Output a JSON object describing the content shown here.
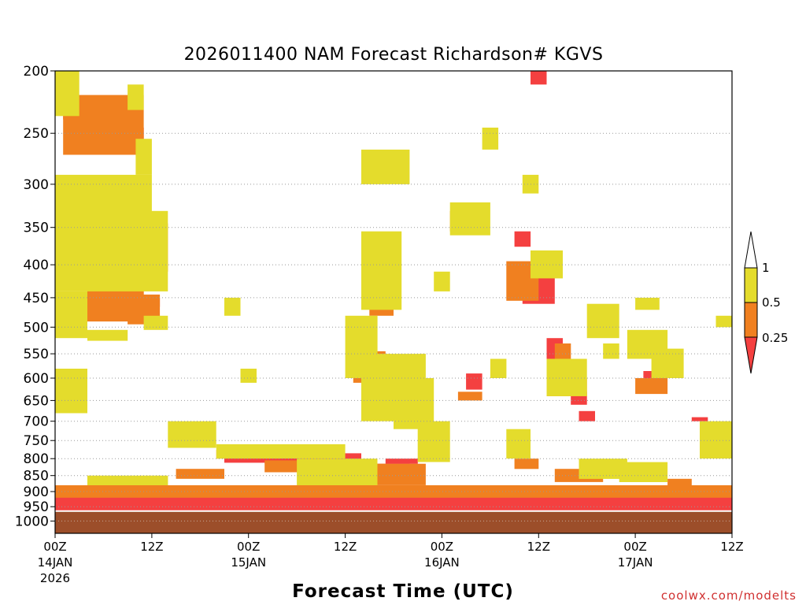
{
  "chart_data": {
    "type": "heatmap",
    "title": "2026011400 NAM Forecast Richardson# KGVS",
    "xlabel": "Forecast Time (UTC)",
    "ylabel": "",
    "credit": "coolwx.com/modelts",
    "y_scale": "log-pressure",
    "ylim": [
      1045,
      200
    ],
    "y_unit": "hPa",
    "y_ticks": [
      200,
      250,
      300,
      350,
      400,
      450,
      500,
      550,
      600,
      650,
      700,
      750,
      800,
      850,
      900,
      950,
      1000
    ],
    "y_tick_labels": [
      "200",
      "250",
      "300",
      "350",
      "400",
      "450",
      "500",
      "550",
      "600",
      "650",
      "700",
      "750",
      "800",
      "850",
      "900",
      "950",
      "1000"
    ],
    "xlim_hours": [
      0,
      84
    ],
    "x_ticks": [
      {
        "hour": 0,
        "label": "00Z",
        "sub": "14JAN",
        "sub2": "2026"
      },
      {
        "hour": 12,
        "label": "12Z",
        "sub": "",
        "sub2": ""
      },
      {
        "hour": 24,
        "label": "00Z",
        "sub": "15JAN",
        "sub2": ""
      },
      {
        "hour": 36,
        "label": "12Z",
        "sub": "",
        "sub2": ""
      },
      {
        "hour": 48,
        "label": "00Z",
        "sub": "16JAN",
        "sub2": ""
      },
      {
        "hour": 60,
        "label": "12Z",
        "sub": "",
        "sub2": ""
      },
      {
        "hour": 72,
        "label": "00Z",
        "sub": "17JAN",
        "sub2": ""
      },
      {
        "hour": 84,
        "label": "12Z",
        "sub": "",
        "sub2": ""
      }
    ],
    "grid": {
      "horizontal_dotted_at_ticks": true,
      "vertical": false
    },
    "legend": {
      "placement": "right",
      "bins": [
        {
          "label": "0.25",
          "lower": null,
          "upper": 0.25,
          "color": "#f44040"
        },
        {
          "label": "0.5",
          "lower": 0.25,
          "upper": 0.5,
          "color": "#f08020"
        },
        {
          "label": "1",
          "lower": 0.5,
          "upper": 1,
          "color": "#e4dc2c"
        },
        {
          "label": "",
          "lower": 1,
          "upper": null,
          "color": "#ffffff"
        }
      ]
    },
    "ground_color": "#9c4e2a",
    "ground_top_hPa": 965,
    "series": [
      {
        "category": "<0.25",
        "color": "#f44040",
        "regions": [
          {
            "h": [
              1,
              3
            ],
            "p": [
              225,
              238
            ]
          },
          {
            "h": [
              4,
              11
            ],
            "p": [
              245,
              263
            ]
          },
          {
            "h": [
              5,
              8
            ],
            "p": [
              315,
              345
            ]
          },
          {
            "h": [
              8,
              13
            ],
            "p": [
              360,
              400
            ]
          },
          {
            "h": [
              6,
              9
            ],
            "p": [
              455,
              475
            ]
          },
          {
            "h": [
              10,
              13
            ],
            "p": [
              450,
              465
            ]
          },
          {
            "h": [
              59,
              61
            ],
            "p": [
              200,
              210
            ]
          },
          {
            "h": [
              57,
              59
            ],
            "p": [
              355,
              375
            ]
          },
          {
            "h": [
              58,
              62
            ],
            "p": [
              410,
              460
            ]
          },
          {
            "h": [
              61,
              63
            ],
            "p": [
              520,
              560
            ]
          },
          {
            "h": [
              64,
              66
            ],
            "p": [
              630,
              660
            ]
          },
          {
            "h": [
              65,
              67
            ],
            "p": [
              675,
              700
            ]
          },
          {
            "h": [
              51,
              53
            ],
            "p": [
              590,
              625
            ]
          },
          {
            "h": [
              73,
              75
            ],
            "p": [
              585,
              610
            ]
          },
          {
            "h": [
              79,
              81
            ],
            "p": [
              690,
              700
            ]
          },
          {
            "h": [
              21,
              38
            ],
            "p": [
              785,
              812
            ]
          },
          {
            "h": [
              38,
              44
            ],
            "p": [
              815,
              860
            ]
          },
          {
            "h": [
              41,
              45
            ],
            "p": [
              800,
              815
            ]
          },
          {
            "h": [
              0,
              84
            ],
            "p": [
              915,
              965
            ]
          }
        ]
      },
      {
        "category": "0.25-0.5",
        "color": "#f08020",
        "regions": [
          {
            "h": [
              1,
              11
            ],
            "p": [
              218,
              270
            ]
          },
          {
            "h": [
              0,
              9
            ],
            "p": [
              305,
              360
            ]
          },
          {
            "h": [
              5,
              14
            ],
            "p": [
              345,
              410
            ]
          },
          {
            "h": [
              4,
              11
            ],
            "p": [
              425,
              490
            ]
          },
          {
            "h": [
              9,
              13
            ],
            "p": [
              445,
              495
            ]
          },
          {
            "h": [
              39,
              42
            ],
            "p": [
              420,
              480
            ]
          },
          {
            "h": [
              37,
              41
            ],
            "p": [
              545,
              610
            ]
          },
          {
            "h": [
              49,
              52
            ],
            "p": [
              330,
              355
            ]
          },
          {
            "h": [
              56,
              60
            ],
            "p": [
              395,
              455
            ]
          },
          {
            "h": [
              62,
              64
            ],
            "p": [
              530,
              570
            ]
          },
          {
            "h": [
              61,
              66
            ],
            "p": [
              600,
              640
            ]
          },
          {
            "h": [
              50,
              53
            ],
            "p": [
              630,
              650
            ]
          },
          {
            "h": [
              72,
              76
            ],
            "p": [
              600,
              635
            ]
          },
          {
            "h": [
              76,
              79
            ],
            "p": [
              860,
              880
            ]
          },
          {
            "h": [
              15,
              21
            ],
            "p": [
              830,
              860
            ]
          },
          {
            "h": [
              20,
              28
            ],
            "p": [
              775,
              800
            ]
          },
          {
            "h": [
              26,
              40
            ],
            "p": [
              805,
              840
            ]
          },
          {
            "h": [
              40,
              46
            ],
            "p": [
              815,
              880
            ]
          },
          {
            "h": [
              57,
              60
            ],
            "p": [
              800,
              830
            ]
          },
          {
            "h": [
              62,
              68
            ],
            "p": [
              830,
              870
            ]
          },
          {
            "h": [
              0,
              84
            ],
            "p": [
              880,
              920
            ]
          }
        ]
      },
      {
        "category": "0.5-1",
        "color": "#e4dc2c",
        "regions": [
          {
            "h": [
              0,
              3
            ],
            "p": [
              200,
              235
            ]
          },
          {
            "h": [
              9,
              11
            ],
            "p": [
              210,
              230
            ]
          },
          {
            "h": [
              10,
              12
            ],
            "p": [
              255,
              290
            ]
          },
          {
            "h": [
              0,
              12
            ],
            "p": [
              290,
              340
            ]
          },
          {
            "h": [
              0,
              14
            ],
            "p": [
              330,
              440
            ]
          },
          {
            "h": [
              0,
              4
            ],
            "p": [
              440,
              520
            ]
          },
          {
            "h": [
              4,
              9
            ],
            "p": [
              505,
              525
            ]
          },
          {
            "h": [
              11,
              14
            ],
            "p": [
              480,
              505
            ]
          },
          {
            "h": [
              38,
              44
            ],
            "p": [
              265,
              300
            ]
          },
          {
            "h": [
              38,
              43
            ],
            "p": [
              355,
              470
            ]
          },
          {
            "h": [
              36,
              40
            ],
            "p": [
              480,
              600
            ]
          },
          {
            "h": [
              38,
              46
            ],
            "p": [
              550,
              700
            ]
          },
          {
            "h": [
              42,
              47
            ],
            "p": [
              600,
              720
            ]
          },
          {
            "h": [
              47,
              49
            ],
            "p": [
              410,
              440
            ]
          },
          {
            "h": [
              49,
              54
            ],
            "p": [
              320,
              360
            ]
          },
          {
            "h": [
              53,
              55
            ],
            "p": [
              245,
              265
            ]
          },
          {
            "h": [
              58,
              60
            ],
            "p": [
              290,
              310
            ]
          },
          {
            "h": [
              54,
              56
            ],
            "p": [
              560,
              600
            ]
          },
          {
            "h": [
              59,
              63
            ],
            "p": [
              380,
              420
            ]
          },
          {
            "h": [
              61,
              66
            ],
            "p": [
              560,
              640
            ]
          },
          {
            "h": [
              66,
              70
            ],
            "p": [
              460,
              520
            ]
          },
          {
            "h": [
              68,
              70
            ],
            "p": [
              530,
              560
            ]
          },
          {
            "h": [
              71,
              76
            ],
            "p": [
              505,
              560
            ]
          },
          {
            "h": [
              74,
              78
            ],
            "p": [
              540,
              600
            ]
          },
          {
            "h": [
              72,
              75
            ],
            "p": [
              450,
              470
            ]
          },
          {
            "h": [
              82,
              84
            ],
            "p": [
              480,
              500
            ]
          },
          {
            "h": [
              0,
              4
            ],
            "p": [
              580,
              680
            ]
          },
          {
            "h": [
              14,
              20
            ],
            "p": [
              700,
              770
            ]
          },
          {
            "h": [
              23,
              25
            ],
            "p": [
              580,
              610
            ]
          },
          {
            "h": [
              21,
              23
            ],
            "p": [
              450,
              480
            ]
          },
          {
            "h": [
              20,
              36
            ],
            "p": [
              760,
              800
            ]
          },
          {
            "h": [
              30,
              40
            ],
            "p": [
              800,
              880
            ]
          },
          {
            "h": [
              45,
              49
            ],
            "p": [
              700,
              810
            ]
          },
          {
            "h": [
              56,
              59
            ],
            "p": [
              720,
              800
            ]
          },
          {
            "h": [
              65,
              71
            ],
            "p": [
              800,
              860
            ]
          },
          {
            "h": [
              70,
              76
            ],
            "p": [
              810,
              870
            ]
          },
          {
            "h": [
              80,
              84
            ],
            "p": [
              700,
              800
            ]
          },
          {
            "h": [
              4,
              14
            ],
            "p": [
              850,
              880
            ]
          }
        ]
      }
    ]
  }
}
